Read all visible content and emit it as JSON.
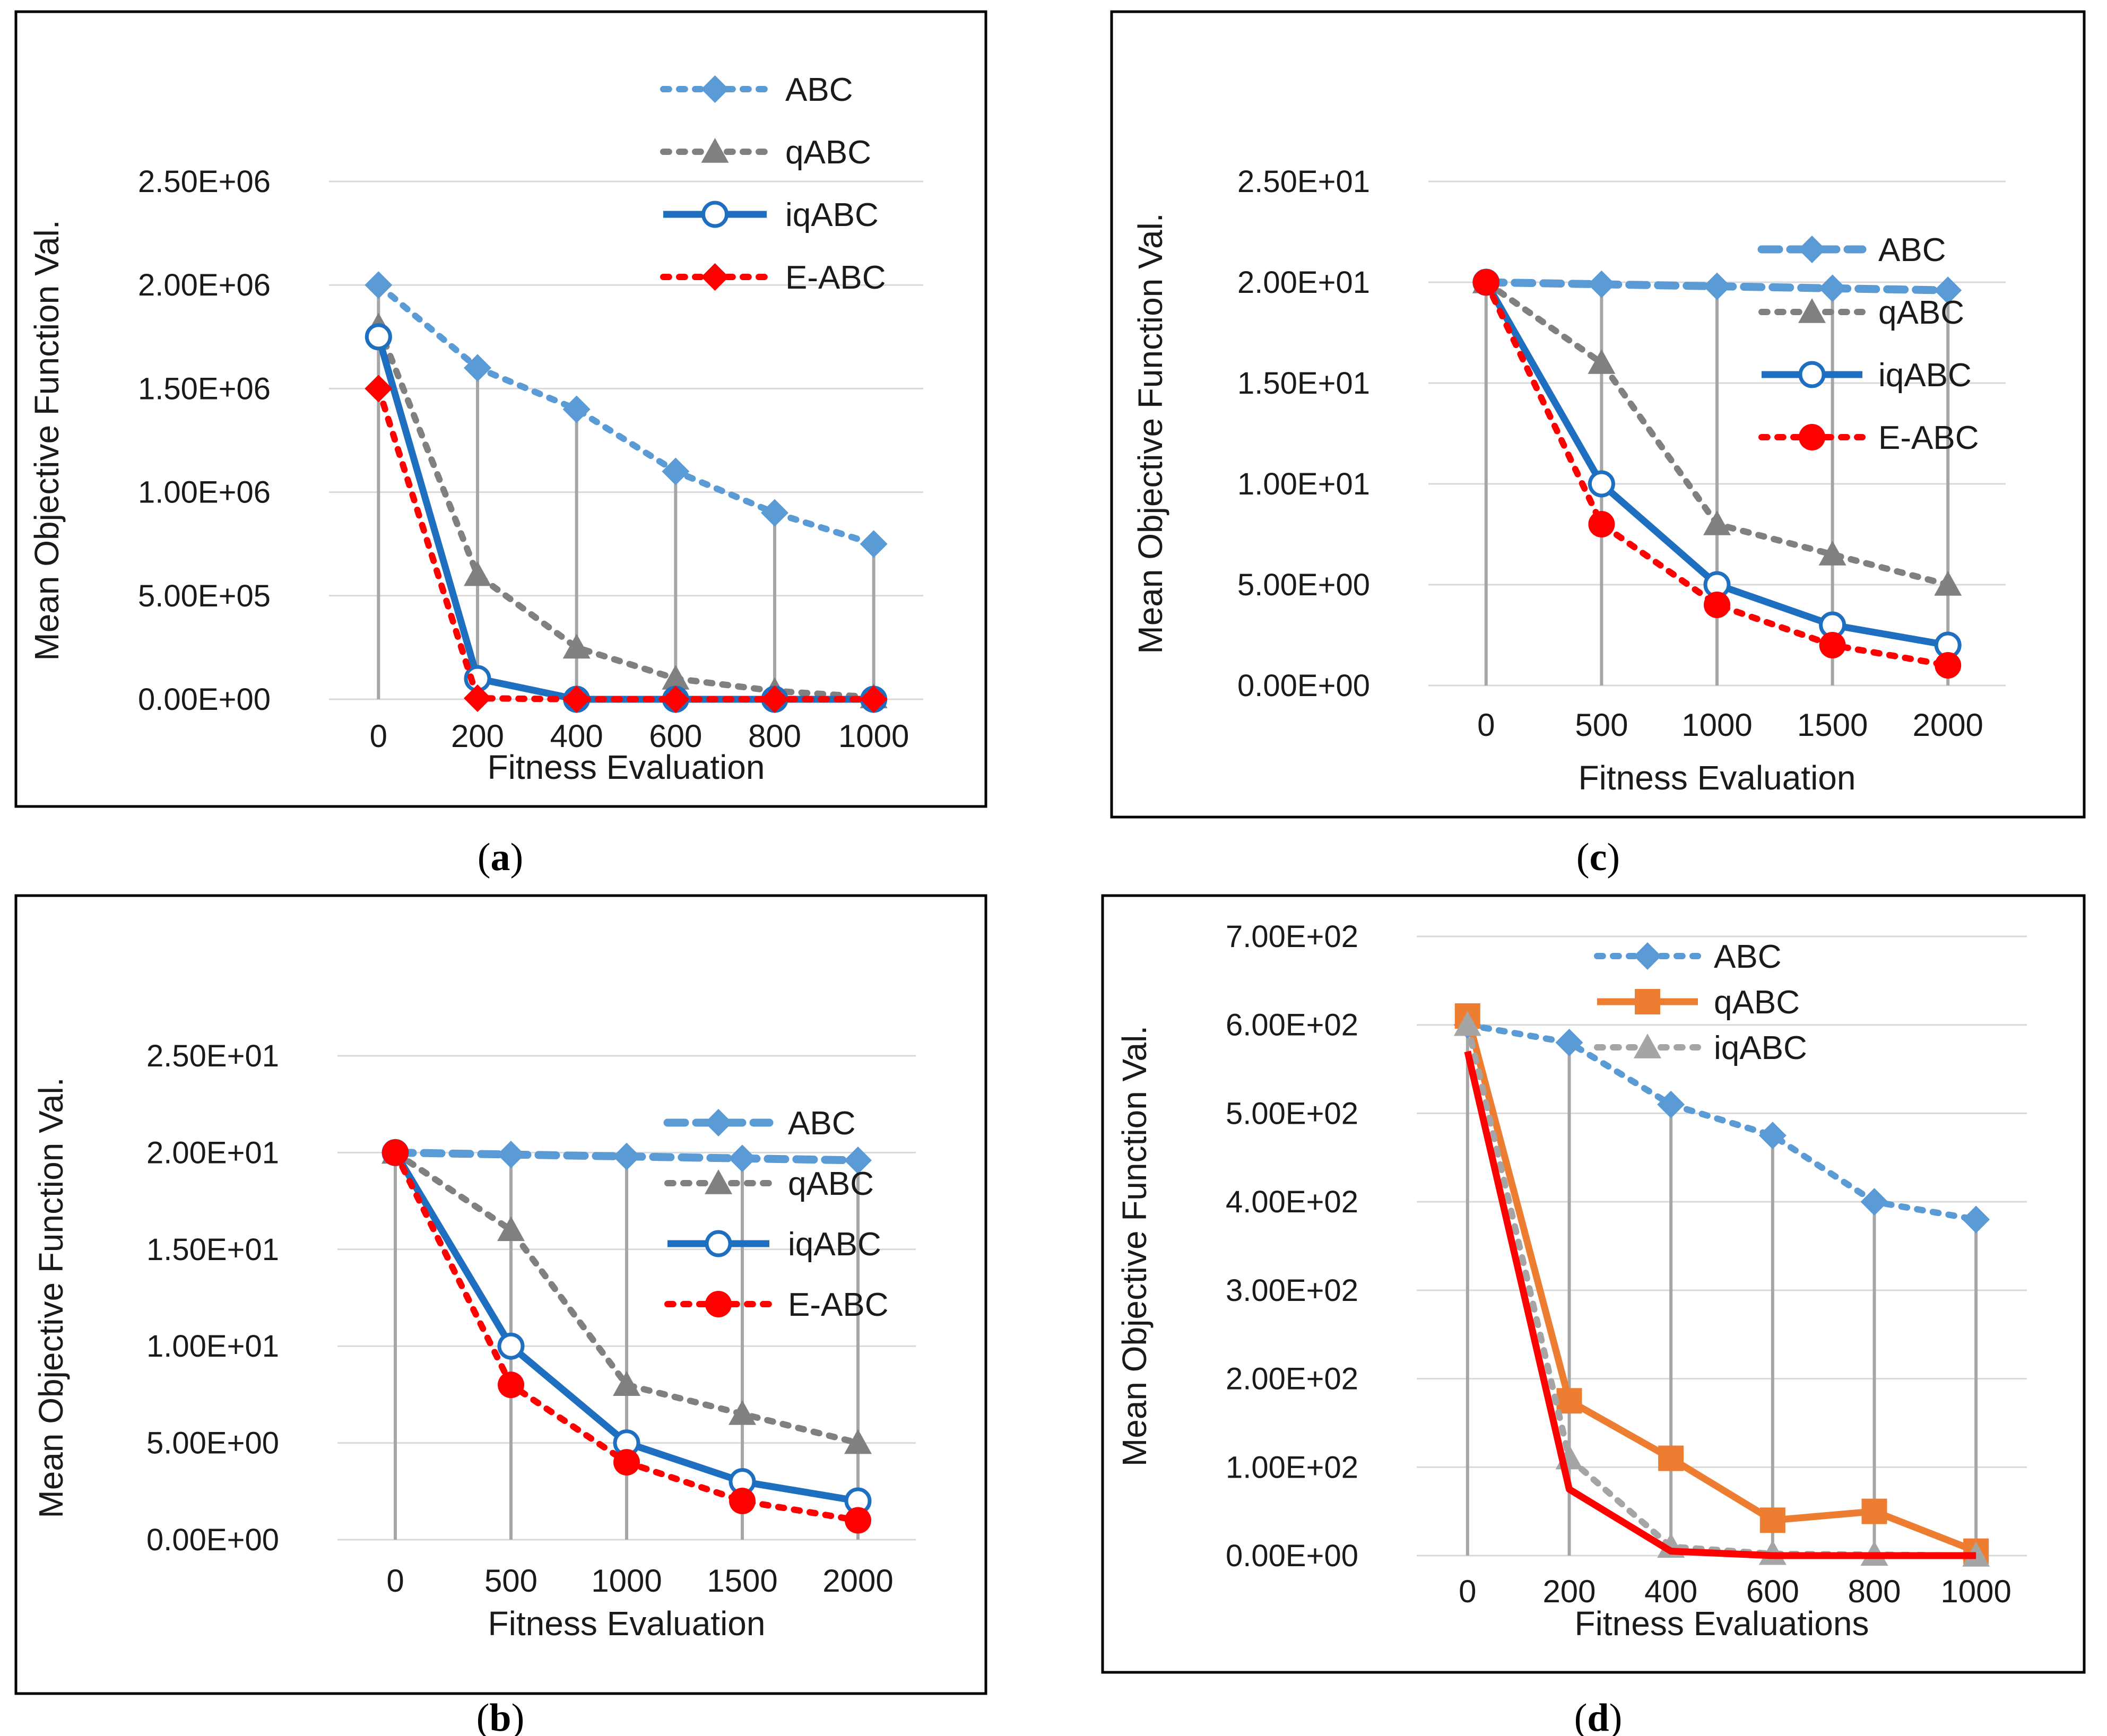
{
  "chart_data": [
    {
      "id": "a",
      "type": "line",
      "caption_letter": "a",
      "xlabel": "Fitness Evaluation",
      "ylabel": "Mean Objective Function Val.",
      "x": [
        0,
        200,
        400,
        600,
        800,
        1000
      ],
      "x_tick_labels": [
        "0",
        "200",
        "400",
        "600",
        "800",
        "1000"
      ],
      "ylim": [
        0,
        2500000
      ],
      "y_ticks": [
        0,
        500000,
        1000000,
        1500000,
        2000000,
        2500000
      ],
      "y_tick_labels": [
        "0.00E+00",
        "5.00E+05",
        "1.00E+06",
        "1.50E+06",
        "2.00E+06",
        "2.50E+06"
      ],
      "grid": true,
      "drop_lines": true,
      "legend_position": "top-right",
      "series": [
        {
          "name": "ABC",
          "values": [
            2000000,
            1600000,
            1400000,
            1100000,
            900000,
            750000
          ],
          "color": "#5B9BD5",
          "style": "dotted",
          "marker": "diamond"
        },
        {
          "name": "qABC",
          "values": [
            1800000,
            600000,
            250000,
            100000,
            40000,
            10000
          ],
          "color": "#808080",
          "style": "dotted",
          "marker": "triangle"
        },
        {
          "name": "iqABC",
          "values": [
            1750000,
            100000,
            0,
            0,
            0,
            0
          ],
          "color": "#1F6FC0",
          "style": "solid",
          "marker": "open-circle"
        },
        {
          "name": "E-ABC",
          "values": [
            1500000,
            5000,
            0,
            0,
            0,
            0
          ],
          "color": "#FF0000",
          "style": "dotted",
          "marker": "diamond"
        }
      ]
    },
    {
      "id": "c",
      "type": "line",
      "caption_letter": "c",
      "xlabel": "Fitness Evaluation",
      "ylabel": "Mean Objective Function Val.",
      "x": [
        0,
        500,
        1000,
        1500,
        2000
      ],
      "x_tick_labels": [
        "0",
        "500",
        "1000",
        "1500",
        "2000"
      ],
      "ylim": [
        0,
        25
      ],
      "y_ticks": [
        0,
        5,
        10,
        15,
        20,
        25
      ],
      "y_tick_labels": [
        "0.00E+00",
        "5.00E+00",
        "1.00E+01",
        "1.50E+01",
        "2.00E+01",
        "2.50E+01"
      ],
      "grid": true,
      "drop_lines": true,
      "legend_position": "middle-right",
      "series": [
        {
          "name": "ABC",
          "values": [
            20,
            19.9,
            19.8,
            19.7,
            19.6
          ],
          "color": "#5B9BD5",
          "style": "dashed",
          "marker": "diamond"
        },
        {
          "name": "qABC",
          "values": [
            20,
            16,
            8,
            6.5,
            5
          ],
          "color": "#808080",
          "style": "dotted",
          "marker": "triangle"
        },
        {
          "name": "iqABC",
          "values": [
            20,
            10,
            5,
            3,
            2
          ],
          "color": "#1F6FC0",
          "style": "solid",
          "marker": "open-circle"
        },
        {
          "name": "E-ABC",
          "values": [
            20,
            8,
            4,
            2,
            1
          ],
          "color": "#FF0000",
          "style": "dotted",
          "marker": "circle"
        }
      ]
    },
    {
      "id": "b",
      "type": "line",
      "caption_letter": "b",
      "xlabel": "Fitness Evaluation",
      "ylabel": "Mean Objective Function Val.",
      "x": [
        0,
        500,
        1000,
        1500,
        2000
      ],
      "x_tick_labels": [
        "0",
        "500",
        "1000",
        "1500",
        "2000"
      ],
      "ylim": [
        0,
        25
      ],
      "y_ticks": [
        0,
        5,
        10,
        15,
        20,
        25
      ],
      "y_tick_labels": [
        "0.00E+00",
        "5.00E+00",
        "1.00E+01",
        "1.50E+01",
        "2.00E+01",
        "2.50E+01"
      ],
      "grid": true,
      "drop_lines": true,
      "legend_position": "middle-right",
      "series": [
        {
          "name": "ABC",
          "values": [
            20,
            19.9,
            19.8,
            19.7,
            19.6
          ],
          "color": "#5B9BD5",
          "style": "dashed",
          "marker": "diamond"
        },
        {
          "name": "qABC",
          "values": [
            20,
            16,
            8,
            6.5,
            5
          ],
          "color": "#808080",
          "style": "dotted",
          "marker": "triangle"
        },
        {
          "name": "iqABC",
          "values": [
            20,
            10,
            5,
            3,
            2
          ],
          "color": "#1F6FC0",
          "style": "solid",
          "marker": "open-circle"
        },
        {
          "name": "E-ABC",
          "values": [
            20,
            8,
            4,
            2,
            1
          ],
          "color": "#FF0000",
          "style": "dotted",
          "marker": "circle"
        }
      ]
    },
    {
      "id": "d",
      "type": "line",
      "caption_letter": "d",
      "xlabel": "Fitness Evaluations",
      "ylabel": "Mean Objective Function Val.",
      "x": [
        0,
        200,
        400,
        600,
        800,
        1000
      ],
      "x_tick_labels": [
        "0",
        "200",
        "400",
        "600",
        "800",
        "1000"
      ],
      "ylim": [
        0,
        700
      ],
      "y_ticks": [
        0,
        100,
        200,
        300,
        400,
        500,
        600,
        700
      ],
      "y_tick_labels": [
        "0.00E+00",
        "1.00E+02",
        "2.00E+02",
        "3.00E+02",
        "4.00E+02",
        "5.00E+02",
        "6.00E+02",
        "7.00E+02"
      ],
      "grid": true,
      "drop_lines": true,
      "legend_position": "top-center",
      "series": [
        {
          "name": "ABC",
          "values": [
            600,
            580,
            510,
            475,
            400,
            380
          ],
          "color": "#5B9BD5",
          "style": "dotted",
          "marker": "diamond",
          "in_legend": true
        },
        {
          "name": "qABC",
          "values": [
            610,
            175,
            110,
            40,
            50,
            5
          ],
          "color": "#ED7D31",
          "style": "solid",
          "marker": "square",
          "in_legend": true
        },
        {
          "name": "iqABC",
          "values": [
            600,
            110,
            10,
            2,
            1,
            0
          ],
          "color": "#A5A5A5",
          "style": "dotted",
          "marker": "triangle",
          "in_legend": true
        },
        {
          "name": "",
          "values": [
            570,
            75,
            5,
            0,
            0,
            0
          ],
          "color": "#FF0000",
          "style": "solid",
          "marker": "none",
          "in_legend": false
        }
      ]
    }
  ]
}
